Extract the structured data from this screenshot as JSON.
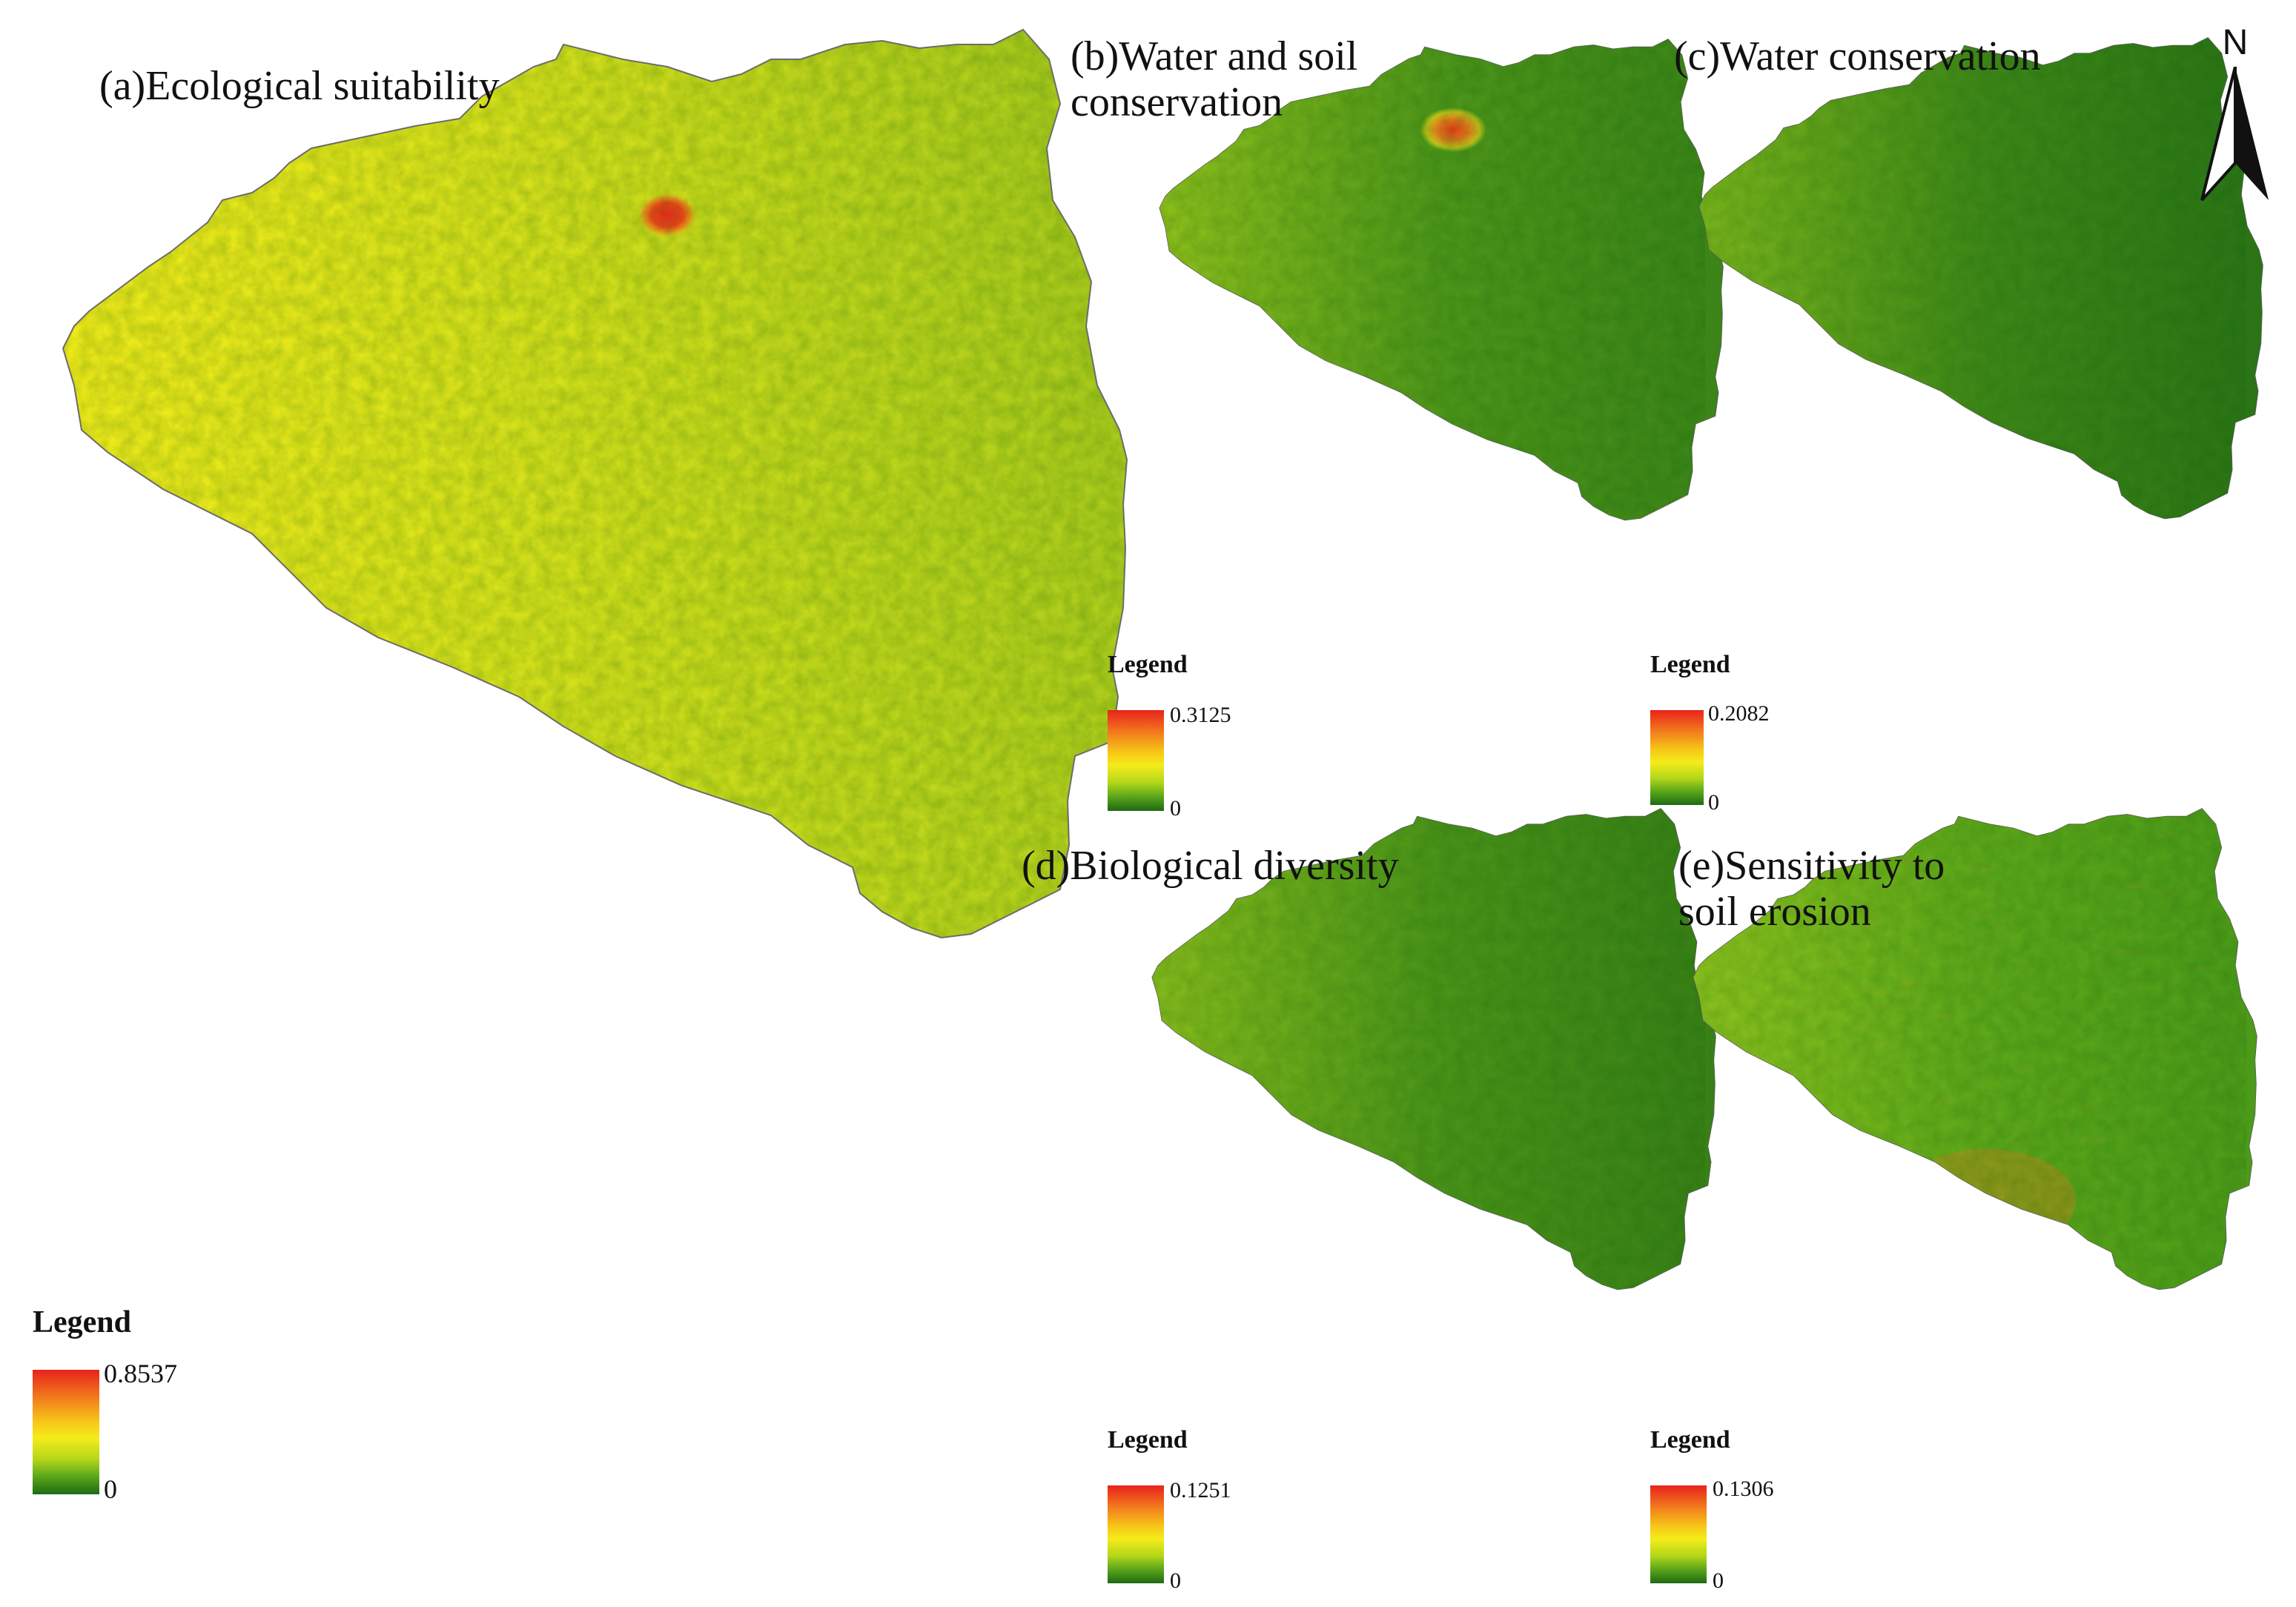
{
  "colors": {
    "high": "#e8231c",
    "orange": "#f27a1d",
    "yellow": "#f4ec1a",
    "light_green": "#a8d01c",
    "mid_green": "#5fa81a",
    "dark_green": "#1e6a14",
    "outline": "#666666"
  },
  "north_arrow": {
    "label": "N"
  },
  "panels": [
    {
      "title": "(a)Ecological suitability",
      "legend": {
        "title": "Legend",
        "max": "0.8537",
        "min": "0"
      }
    },
    {
      "title": "(b)Water and soil",
      "title2": "conservation",
      "legend": {
        "title": "Legend",
        "max": "0.3125",
        "min": "0"
      }
    },
    {
      "title": "(c)Water conservation",
      "legend": {
        "title": "Legend",
        "max": "0.2082",
        "min": "0"
      }
    },
    {
      "title": "(d)Biological diversity",
      "legend": {
        "title": "Legend",
        "max": "0.1251",
        "min": "0"
      }
    },
    {
      "title": "(e)Sensitivity to",
      "title2": "soil erosion",
      "legend": {
        "title": "Legend",
        "max": "0.1306",
        "min": "0"
      }
    }
  ]
}
